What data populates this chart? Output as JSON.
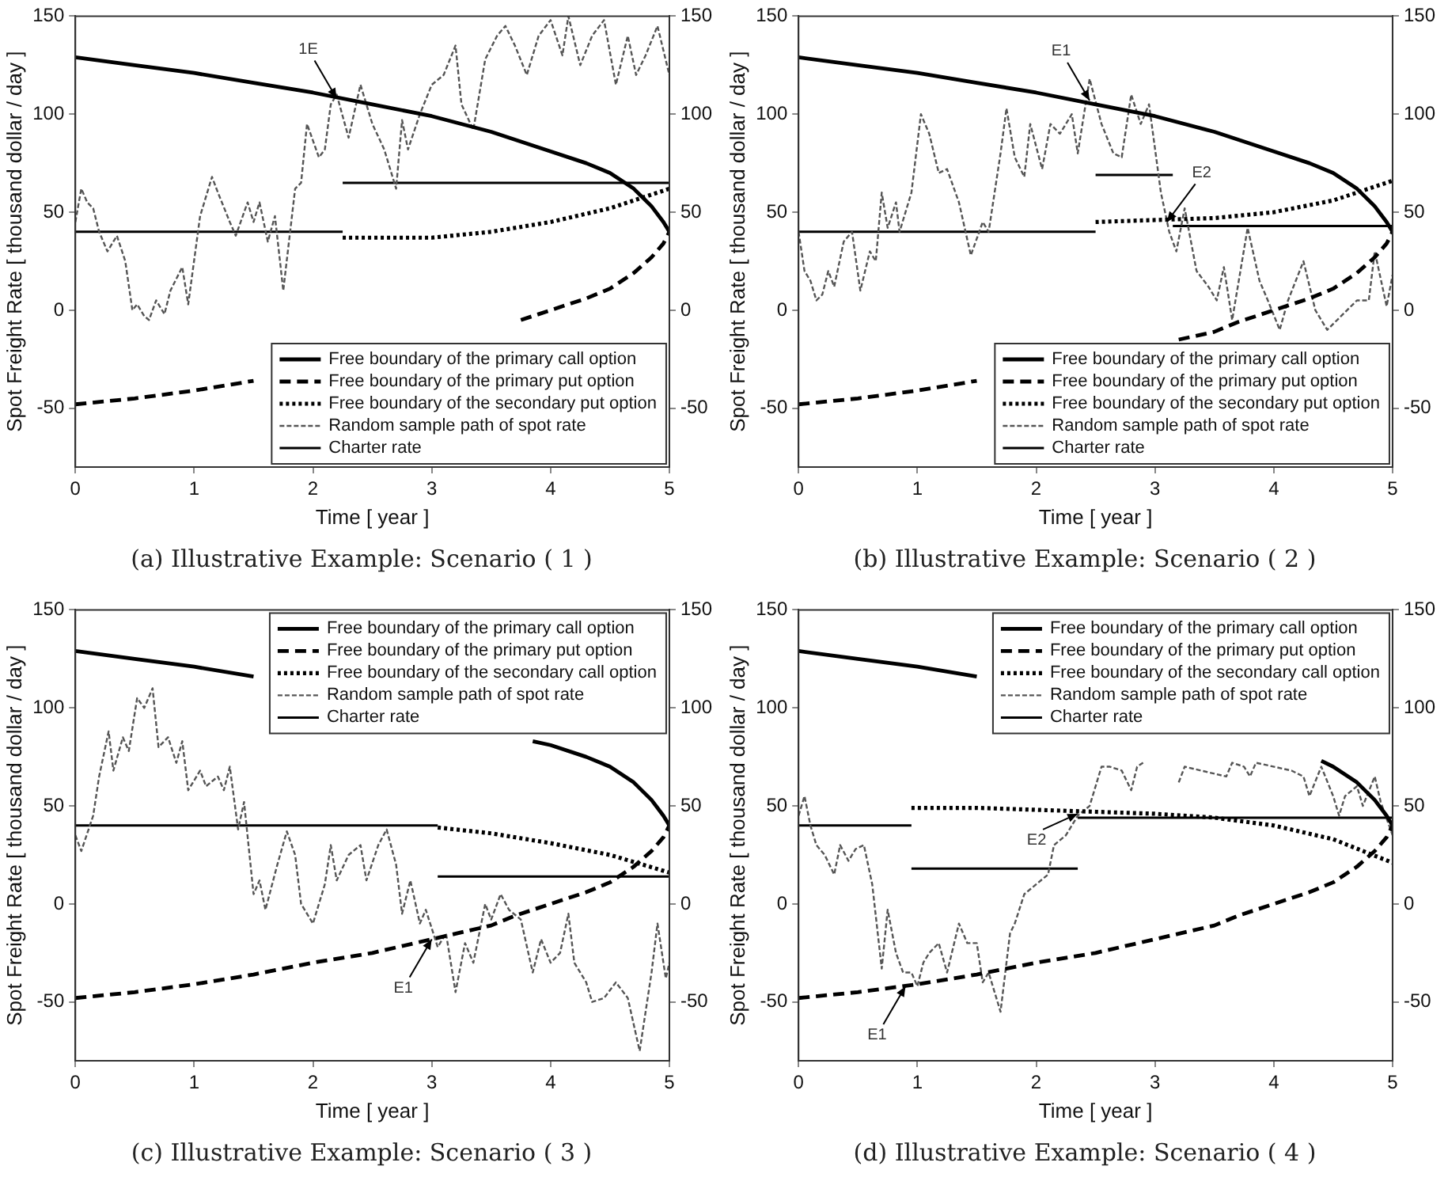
{
  "chart_data": [
    {
      "type": "line",
      "title": "(a) Illustrative Example: Scenario ( 1 )",
      "xlabel": "Time [ year ]",
      "ylabel": "Spot Freight Rate [ thousand dollar / day ]",
      "xlim": [
        0,
        5
      ],
      "xticks": [
        0,
        1,
        2,
        3,
        4,
        5
      ],
      "ylim": [
        -80,
        150
      ],
      "yticks": [
        -50,
        0,
        50,
        100,
        150
      ],
      "y2lim": [
        -80,
        150
      ],
      "y2ticks": [
        -50,
        0,
        50,
        100,
        150
      ],
      "grid": false,
      "legend": "bottom right",
      "marker": "none",
      "annotations": [
        {
          "text": "1E",
          "x": 2.2,
          "y": 108
        }
      ],
      "series": [
        {
          "name": "Free boundary of the primary call option",
          "color": "#000000",
          "line_style": "solid",
          "x": [
            0,
            0.5,
            1,
            1.5,
            2,
            2.5,
            3,
            3.5,
            4,
            4.3,
            4.5,
            4.7,
            4.85,
            4.95,
            5
          ],
          "values": [
            129,
            125,
            121,
            116,
            111,
            105,
            99,
            91,
            81,
            75,
            70,
            62,
            53,
            45,
            40
          ]
        },
        {
          "name": "Free boundary of the primary put option",
          "color": "#000000",
          "line_style": "dashed",
          "x": [
            0,
            0.5,
            1,
            1.5,
            null,
            3.75,
            4,
            4.3,
            4.5,
            4.7,
            4.85,
            4.95,
            5
          ],
          "values": [
            -48,
            -45,
            -41,
            -36,
            null,
            -5,
            0,
            6,
            11,
            19,
            27,
            34,
            40
          ]
        },
        {
          "name": "Free boundary of the secondary put option",
          "color": "#000000",
          "line_style": "dotted",
          "x": [
            2.25,
            3,
            3.5,
            4,
            4.5,
            5
          ],
          "values": [
            37,
            37,
            40,
            45,
            52,
            62
          ]
        },
        {
          "name": "Random sample path of spot rate",
          "color": "#555555",
          "line_style": "dotted",
          "x": [
            0,
            0.05,
            0.1,
            0.15,
            0.2,
            0.27,
            0.35,
            0.42,
            0.48,
            0.52,
            0.58,
            0.62,
            0.68,
            0.75,
            0.8,
            0.9,
            0.95,
            1.05,
            1.15,
            1.2,
            1.3,
            1.35,
            1.45,
            1.5,
            1.55,
            1.62,
            1.68,
            1.75,
            1.85,
            1.9,
            1.95,
            2.05,
            2.1,
            2.15,
            2.2,
            2.3,
            2.4,
            2.5,
            2.6,
            2.7,
            2.75,
            2.8,
            2.9,
            3,
            3.1,
            3.2,
            3.25,
            3.35,
            3.45,
            3.55,
            3.62,
            3.7,
            3.8,
            3.9,
            4,
            4.1,
            4.15,
            4.25,
            4.35,
            4.45,
            4.55,
            4.65,
            4.72,
            4.8,
            4.9,
            5
          ],
          "values": [
            45,
            62,
            55,
            52,
            40,
            30,
            38,
            25,
            0,
            3,
            -3,
            -5,
            5,
            -2,
            10,
            22,
            3,
            48,
            68,
            60,
            45,
            38,
            55,
            45,
            55,
            35,
            48,
            10,
            62,
            65,
            95,
            78,
            82,
            105,
            110,
            88,
            115,
            95,
            82,
            62,
            97,
            82,
            100,
            115,
            120,
            135,
            105,
            92,
            128,
            140,
            145,
            135,
            120,
            140,
            148,
            130,
            150,
            125,
            140,
            148,
            115,
            140,
            120,
            130,
            145,
            120
          ]
        },
        {
          "name": "Charter rate",
          "color": "#000000",
          "line_style": "solid",
          "x": [
            0,
            2.25,
            null,
            2.25,
            5
          ],
          "values": [
            40,
            40,
            null,
            65,
            65
          ]
        }
      ]
    },
    {
      "type": "line",
      "title": "(b) Illustrative Example: Scenario ( 2 )",
      "xlabel": "Time [ year ]",
      "ylabel": "Spot Freight Rate [ thousand dollar / day ]",
      "xlim": [
        0,
        5
      ],
      "xticks": [
        0,
        1,
        2,
        3,
        4,
        5
      ],
      "ylim": [
        -80,
        150
      ],
      "yticks": [
        -50,
        0,
        50,
        100,
        150
      ],
      "y2lim": [
        -80,
        150
      ],
      "y2ticks": [
        -50,
        0,
        50,
        100,
        150
      ],
      "grid": false,
      "legend": "bottom right",
      "marker": "none",
      "annotations": [
        {
          "text": "E1",
          "x": 2.45,
          "y": 107
        },
        {
          "text": "E2",
          "x": 3.1,
          "y": 45
        }
      ],
      "series": [
        {
          "name": "Free boundary of the primary call option",
          "color": "#000000",
          "line_style": "solid",
          "x": [
            0,
            0.5,
            1,
            1.5,
            2,
            2.5,
            3,
            3.5,
            4,
            4.3,
            4.5,
            4.7,
            4.85,
            4.95,
            5
          ],
          "values": [
            129,
            125,
            121,
            116,
            111,
            105,
            99,
            91,
            81,
            75,
            70,
            62,
            53,
            45,
            40
          ]
        },
        {
          "name": "Free boundary of the primary put option",
          "color": "#000000",
          "line_style": "dashed",
          "x": [
            0,
            0.5,
            1,
            1.5,
            null,
            3.2,
            3.5,
            3.7,
            4,
            4.3,
            4.5,
            4.7,
            4.85,
            4.95,
            5
          ],
          "values": [
            -48,
            -45,
            -41,
            -36,
            null,
            -15,
            -11,
            -6,
            0,
            6,
            11,
            19,
            27,
            34,
            40
          ]
        },
        {
          "name": "Free boundary of the secondary put option",
          "color": "#000000",
          "line_style": "dotted",
          "x": [
            2.5,
            3,
            3.5,
            4,
            4.5,
            5
          ],
          "values": [
            45,
            46,
            47,
            50,
            56,
            66
          ]
        },
        {
          "name": "Random sample path of spot rate",
          "color": "#555555",
          "line_style": "dotted",
          "x": [
            0,
            0.05,
            0.1,
            0.15,
            0.2,
            0.25,
            0.3,
            0.38,
            0.45,
            0.52,
            0.6,
            0.65,
            0.7,
            0.75,
            0.82,
            0.85,
            0.95,
            1.03,
            1.1,
            1.18,
            1.25,
            1.35,
            1.45,
            1.55,
            1.6,
            1.65,
            1.7,
            1.75,
            1.82,
            1.9,
            1.95,
            2.05,
            2.12,
            2.2,
            2.3,
            2.35,
            2.45,
            2.55,
            2.65,
            2.72,
            2.8,
            2.88,
            2.95,
            3.05,
            3.12,
            3.18,
            3.25,
            3.35,
            3.45,
            3.52,
            3.58,
            3.65,
            3.78,
            3.88,
            3.95,
            4.05,
            4.12,
            4.25,
            4.35,
            4.45,
            4.7,
            4.8,
            4.85,
            4.95,
            5
          ],
          "values": [
            40,
            20,
            15,
            5,
            8,
            20,
            12,
            35,
            40,
            10,
            30,
            25,
            60,
            42,
            55,
            40,
            60,
            100,
            90,
            70,
            72,
            55,
            28,
            45,
            40,
            60,
            80,
            103,
            78,
            68,
            95,
            72,
            95,
            90,
            100,
            80,
            118,
            95,
            80,
            78,
            110,
            95,
            105,
            60,
            40,
            30,
            52,
            20,
            12,
            5,
            22,
            -5,
            42,
            15,
            5,
            -10,
            5,
            25,
            0,
            -10,
            5,
            5,
            30,
            2,
            18
          ]
        },
        {
          "name": "Charter rate",
          "color": "#000000",
          "line_style": "solid",
          "x": [
            0,
            2.5,
            null,
            2.5,
            3.15,
            null,
            3.15,
            5
          ],
          "values": [
            40,
            40,
            null,
            69,
            69,
            null,
            43,
            43
          ]
        }
      ]
    },
    {
      "type": "line",
      "title": "(c) Illustrative Example: Scenario ( 3 )",
      "xlabel": "Time [ year ]",
      "ylabel": "Spot Freight Rate [ thousand dollar / day ]",
      "xlim": [
        0,
        5
      ],
      "xticks": [
        0,
        1,
        2,
        3,
        4,
        5
      ],
      "ylim": [
        -80,
        150
      ],
      "yticks": [
        -50,
        0,
        50,
        100,
        150
      ],
      "y2lim": [
        -80,
        150
      ],
      "y2ticks": [
        -50,
        0,
        50,
        100,
        150
      ],
      "grid": false,
      "legend": "top right",
      "marker": "none",
      "annotations": [
        {
          "text": "E1",
          "x": 3.0,
          "y": -18
        }
      ],
      "series": [
        {
          "name": "Free boundary of the primary call option",
          "color": "#000000",
          "line_style": "solid",
          "x": [
            0,
            0.5,
            1,
            1.5,
            null,
            3.85,
            4,
            4.3,
            4.5,
            4.7,
            4.85,
            4.95,
            5
          ],
          "values": [
            129,
            125,
            121,
            116,
            null,
            83,
            81,
            75,
            70,
            62,
            53,
            45,
            40
          ]
        },
        {
          "name": "Free boundary of the primary put option",
          "color": "#000000",
          "line_style": "dashed",
          "x": [
            0,
            0.5,
            1,
            1.5,
            2,
            2.5,
            3,
            3.5,
            3.7,
            4,
            4.3,
            4.5,
            4.7,
            4.85,
            4.95,
            5
          ],
          "values": [
            -48,
            -45,
            -41,
            -36,
            -30,
            -25,
            -18,
            -11,
            -6,
            0,
            6,
            11,
            19,
            27,
            34,
            40
          ]
        },
        {
          "name": "Free boundary of the secondary call option",
          "color": "#000000",
          "line_style": "dotted",
          "x": [
            3.05,
            3.5,
            4,
            4.5,
            5
          ],
          "values": [
            39,
            36,
            31,
            25,
            16
          ]
        },
        {
          "name": "Random sample path of spot rate",
          "color": "#555555",
          "line_style": "dotted",
          "x": [
            0,
            0.05,
            0.15,
            0.2,
            0.28,
            0.32,
            0.4,
            0.45,
            0.52,
            0.58,
            0.65,
            0.7,
            0.78,
            0.85,
            0.9,
            0.95,
            1.05,
            1.1,
            1.2,
            1.25,
            1.3,
            1.37,
            1.42,
            1.5,
            1.55,
            1.6,
            1.7,
            1.78,
            1.85,
            1.9,
            2,
            2.1,
            2.15,
            2.2,
            2.3,
            2.4,
            2.45,
            2.55,
            2.62,
            2.7,
            2.75,
            2.82,
            2.9,
            2.95,
            3.05,
            3.12,
            3.2,
            3.28,
            3.35,
            3.45,
            3.5,
            3.58,
            3.65,
            3.75,
            3.85,
            3.92,
            4,
            4.08,
            4.15,
            4.2,
            4.3,
            4.35,
            4.45,
            4.55,
            4.65,
            4.75,
            4.85,
            4.9,
            4.97,
            5
          ],
          "values": [
            35,
            27,
            45,
            65,
            88,
            68,
            85,
            78,
            105,
            100,
            110,
            80,
            85,
            72,
            83,
            58,
            68,
            60,
            65,
            58,
            70,
            38,
            52,
            5,
            12,
            -3,
            20,
            37,
            25,
            0,
            -10,
            10,
            30,
            12,
            25,
            30,
            12,
            30,
            38,
            20,
            -5,
            12,
            -10,
            -3,
            -22,
            -15,
            -45,
            -20,
            -30,
            0,
            -8,
            5,
            -3,
            -8,
            -35,
            -18,
            -30,
            -25,
            -5,
            -30,
            -40,
            -50,
            -48,
            -40,
            -48,
            -75,
            -35,
            -10,
            -38,
            -30
          ]
        },
        {
          "name": "Charter rate",
          "color": "#000000",
          "line_style": "solid",
          "x": [
            0,
            3.05,
            null,
            3.05,
            5
          ],
          "values": [
            40,
            40,
            null,
            14,
            14
          ]
        }
      ]
    },
    {
      "type": "line",
      "title": "(d) Illustrative Example: Scenario ( 4 )",
      "xlabel": "Time [ year ]",
      "ylabel": "Spot Freight Rate [ thousand dollar / day ]",
      "xlim": [
        0,
        5
      ],
      "xticks": [
        0,
        1,
        2,
        3,
        4,
        5
      ],
      "ylim": [
        -80,
        150
      ],
      "yticks": [
        -50,
        0,
        50,
        100,
        150
      ],
      "y2lim": [
        -80,
        150
      ],
      "y2ticks": [
        -50,
        0,
        50,
        100,
        150
      ],
      "grid": false,
      "legend": "top right",
      "marker": "none",
      "annotations": [
        {
          "text": "E1",
          "x": 0.9,
          "y": -42
        },
        {
          "text": "E2",
          "x": 2.35,
          "y": 46
        }
      ],
      "series": [
        {
          "name": "Free boundary of the primary call option",
          "color": "#000000",
          "line_style": "solid",
          "x": [
            0,
            0.5,
            1,
            1.5,
            null,
            4.4,
            4.5,
            4.7,
            4.85,
            4.95,
            5
          ],
          "values": [
            129,
            125,
            121,
            116,
            null,
            73,
            70,
            62,
            53,
            45,
            40
          ]
        },
        {
          "name": "Free boundary of the primary put option",
          "color": "#000000",
          "line_style": "dashed",
          "x": [
            0,
            0.5,
            1,
            1.5,
            2,
            2.5,
            3,
            3.5,
            3.7,
            4,
            4.3,
            4.5,
            4.7,
            4.85,
            4.95,
            5
          ],
          "values": [
            -48,
            -45,
            -41,
            -36,
            -30,
            -25,
            -18,
            -11,
            -6,
            0,
            6,
            11,
            19,
            27,
            34,
            40
          ]
        },
        {
          "name": "Free boundary of the secondary call option",
          "color": "#000000",
          "line_style": "dotted",
          "x": [
            0.95,
            1.5,
            2,
            2.5,
            3,
            3.5,
            4,
            4.5,
            5
          ],
          "values": [
            49,
            49,
            48,
            47,
            46,
            44,
            40,
            33,
            21
          ]
        },
        {
          "name": "Random sample path of spot rate",
          "color": "#555555",
          "line_style": "dotted",
          "x": [
            0,
            0.05,
            0.1,
            0.15,
            0.22,
            0.3,
            0.35,
            0.42,
            0.48,
            0.55,
            0.62,
            0.7,
            0.75,
            0.82,
            0.88,
            0.95,
            1,
            1.05,
            1.1,
            1.18,
            1.25,
            1.35,
            1.42,
            1.5,
            1.55,
            1.6,
            1.7,
            1.78,
            1.82,
            1.9,
            2,
            2.1,
            2.15,
            2.25,
            2.35,
            2.45,
            2.5,
            2.55,
            2.62,
            2.72,
            2.8,
            2.85,
            2.9,
            null,
            3.2,
            3.25,
            3.6,
            3.65,
            3.75,
            3.8,
            3.85,
            4.15,
            4.25,
            4.3,
            4.4,
            4.5,
            4.55,
            4.6,
            4.7,
            4.75,
            4.85,
            4.9,
            5
          ],
          "values": [
            45,
            55,
            40,
            30,
            25,
            15,
            30,
            22,
            28,
            30,
            10,
            -33,
            -3,
            -25,
            -35,
            -35,
            -42,
            -30,
            -25,
            -20,
            -35,
            -10,
            -20,
            -20,
            -40,
            -35,
            -55,
            -15,
            -10,
            5,
            10,
            15,
            30,
            35,
            45,
            50,
            60,
            70,
            70,
            68,
            58,
            70,
            72,
            null,
            62,
            70,
            65,
            72,
            70,
            65,
            72,
            68,
            65,
            55,
            70,
            55,
            45,
            55,
            60,
            50,
            65,
            52,
            35
          ]
        },
        {
          "name": "Charter rate",
          "color": "#000000",
          "line_style": "solid",
          "x": [
            0,
            0.95,
            null,
            0.95,
            2.35,
            null,
            2.35,
            5
          ],
          "values": [
            40,
            40,
            null,
            18,
            18,
            null,
            44,
            44
          ]
        }
      ]
    }
  ]
}
